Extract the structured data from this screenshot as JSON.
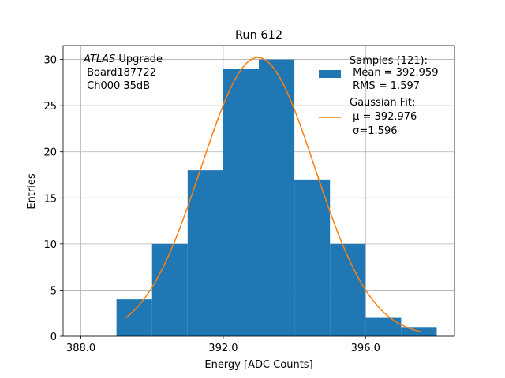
{
  "chart_data": {
    "type": "bar",
    "title": "Run 612",
    "xlabel": "Energy [ADC Counts]",
    "ylabel": "Entries",
    "xlim": [
      387.5,
      398.5
    ],
    "ylim": [
      0,
      31.5
    ],
    "xticks": [
      388,
      392,
      396
    ],
    "xtick_labels": [
      "388.0",
      "392.0",
      "396.0"
    ],
    "yticks": [
      0,
      5,
      10,
      15,
      20,
      25,
      30
    ],
    "ytick_labels": [
      "0",
      "5",
      "10",
      "15",
      "20",
      "25",
      "30"
    ],
    "grid": true,
    "histogram": {
      "name": "Samples",
      "bin_edges": [
        389,
        390,
        391,
        392,
        393,
        394,
        395,
        396,
        397,
        398
      ],
      "counts": [
        4,
        10,
        18,
        29,
        30,
        17,
        10,
        2,
        1
      ],
      "color": "#1f77b4"
    },
    "fit": {
      "name": "Gaussian Fit",
      "mu": 392.976,
      "sigma": 1.596,
      "amplitude": 30.2,
      "x_range": [
        389.25,
        397.55
      ],
      "color": "#ff7f0e"
    },
    "annotation": {
      "italic": "ATLAS",
      "rest": " Upgrade",
      "line2": " Board187722",
      "line3": " Ch000 35dB"
    },
    "legend": {
      "placement": "top-right",
      "samples_title": "Samples (121):",
      "samples_mean": " Mean = 392.959",
      "samples_rms": " RMS = 1.597",
      "fit_title": "Gaussian Fit:",
      "fit_mu": " μ = 392.976",
      "fit_sigma": " σ=1.596"
    }
  }
}
